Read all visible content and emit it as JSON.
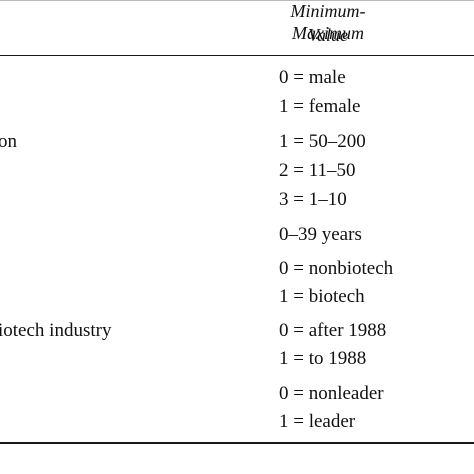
{
  "header": {
    "line1": "Minimum-Maximum",
    "line2": "Value"
  },
  "rows": [
    {
      "variable": "",
      "values": [
        "0 = male",
        "1 = female"
      ]
    },
    {
      "variable": "on",
      "values": [
        "1 = 50–200",
        "2 = 11–50",
        "3 = 1–10"
      ]
    },
    {
      "variable": "",
      "values": [
        "0–39 years"
      ]
    },
    {
      "variable": "",
      "values": [
        "0 = nonbiotech",
        "1 = biotech"
      ]
    },
    {
      "variable": "iotech industry",
      "values": [
        "0 = after 1988",
        "1 = to 1988"
      ]
    },
    {
      "variable": "",
      "values": [
        "0 = nonleader",
        "1 = leader"
      ]
    }
  ]
}
